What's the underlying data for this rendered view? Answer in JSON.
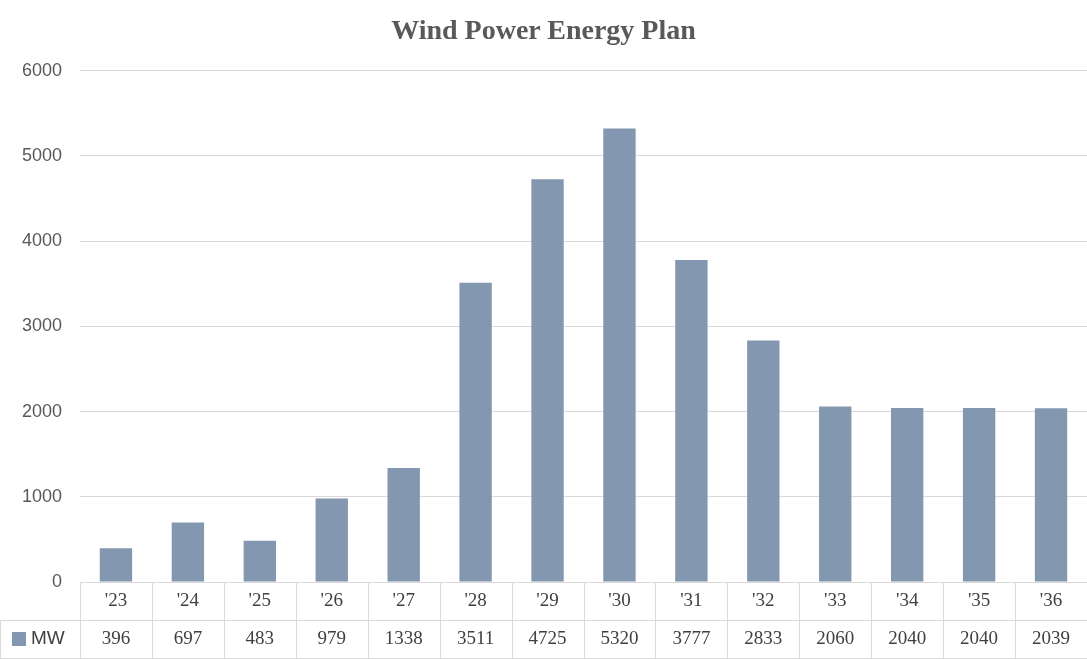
{
  "chart_data": {
    "type": "bar",
    "title": "Wind Power Energy Plan",
    "categories": [
      "'23",
      "'24",
      "'25",
      "'26",
      "'27",
      "'28",
      "'29",
      "'30",
      "'31",
      "'32",
      "'33",
      "'34",
      "'35",
      "'36"
    ],
    "series": [
      {
        "name": "MW",
        "color": "#8497b0",
        "values": [
          396,
          697,
          483,
          979,
          1338,
          3511,
          4725,
          5320,
          3777,
          2833,
          2060,
          2040,
          2040,
          2039
        ]
      }
    ],
    "ylim": [
      0,
      6000
    ],
    "yticks": [
      0,
      1000,
      2000,
      3000,
      4000,
      5000,
      6000
    ],
    "grid": "y",
    "legend": "bottom",
    "data_labels": true
  }
}
